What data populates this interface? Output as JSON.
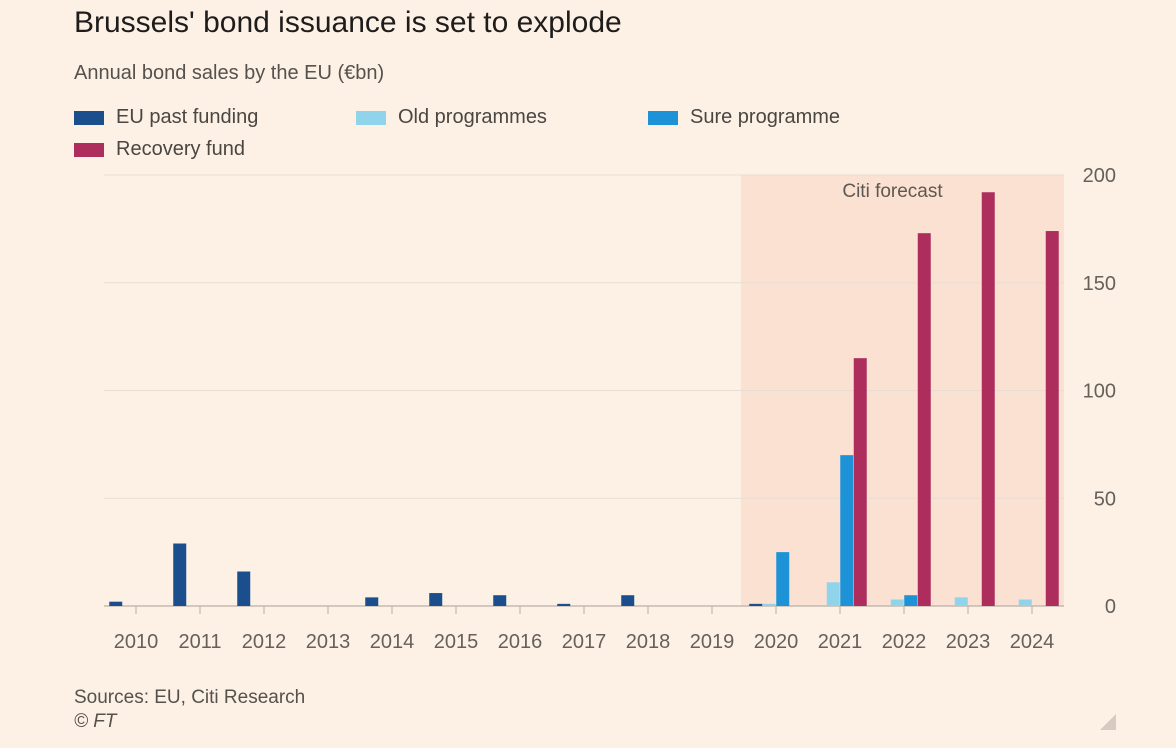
{
  "title": "Brussels' bond issuance is set to explode",
  "subtitle": "Annual bond sales by the EU (€bn)",
  "source": "Sources: EU, Citi Research",
  "credit": "© FT",
  "legend": [
    {
      "label": "EU past funding",
      "color": "#1a4e8c"
    },
    {
      "label": "Old programmes",
      "color": "#90d4ec"
    },
    {
      "label": "Sure programme",
      "color": "#1d92d6"
    },
    {
      "label": "Recovery fund",
      "color": "#ad2d5d"
    }
  ],
  "chart_data": {
    "type": "bar",
    "title": "Brussels' bond issuance is set to explode",
    "subtitle": "Annual bond sales by the EU (€bn)",
    "categories": [
      "2010",
      "2011",
      "2012",
      "2013",
      "2014",
      "2015",
      "2016",
      "2017",
      "2018",
      "2019",
      "2020",
      "2021",
      "2022",
      "2023",
      "2024"
    ],
    "series": [
      {
        "name": "EU past funding",
        "color": "#1a4e8c",
        "values": [
          2,
          29,
          16,
          0,
          4,
          6,
          5,
          1,
          5,
          0,
          1,
          0,
          0,
          0,
          0
        ]
      },
      {
        "name": "Old programmes",
        "color": "#90d4ec",
        "values": [
          0,
          0,
          0,
          0,
          0,
          0,
          0,
          0,
          0,
          0,
          1,
          11,
          3,
          4,
          3
        ]
      },
      {
        "name": "Sure programme",
        "color": "#1d92d6",
        "values": [
          0,
          0,
          0,
          0,
          0,
          0,
          0,
          0,
          0,
          0,
          25,
          70,
          5,
          0,
          0
        ]
      },
      {
        "name": "Recovery fund",
        "color": "#ad2d5d",
        "values": [
          0,
          0,
          0,
          0,
          0,
          0,
          0,
          0,
          0,
          0,
          0,
          115,
          173,
          192,
          174
        ]
      }
    ],
    "ylim": [
      0,
      200
    ],
    "yticks": [
      0,
      50,
      100,
      150,
      200
    ],
    "y_axis_side": "right",
    "grid": true,
    "forecast_region": {
      "from": "2020",
      "to": "2024",
      "label": "Citi forecast",
      "color": "#fbe1d1"
    },
    "legend_position": "top-left"
  }
}
